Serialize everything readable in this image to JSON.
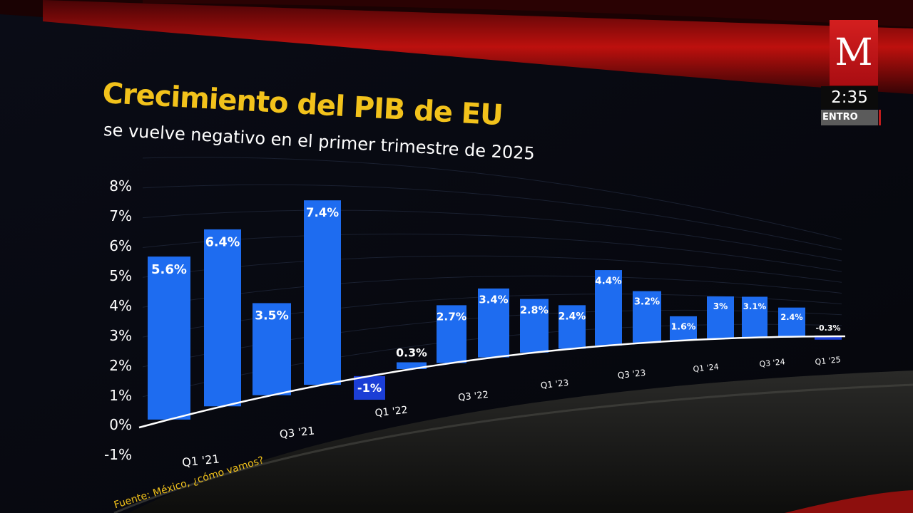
{
  "chart_data": {
    "type": "bar",
    "title": "Crecimiento del PIB de EU",
    "subtitle": "se vuelve negativo en el primer trimestre de 2025",
    "source": "Fuente: México, ¿cómo vamos?",
    "y_ticks": [
      "8%",
      "7%",
      "6%",
      "5%",
      "4%",
      "3%",
      "2%",
      "1%",
      "0%",
      "-1%"
    ],
    "ylim": [
      -1,
      8
    ],
    "x_tick_labels": [
      "Q1 '21",
      "Q3 '21",
      "Q1 '22",
      "Q3 '22",
      "Q1 '23",
      "Q3 '23",
      "Q1 '24",
      "Q3 '24",
      "Q1 '25"
    ],
    "values": [
      5.6,
      6.4,
      3.5,
      7.4,
      -1,
      0.3,
      2.7,
      3.4,
      2.8,
      2.4,
      4.4,
      3.2,
      1.6,
      3.0,
      3.1,
      2.4,
      -0.3
    ],
    "value_labels": [
      "5.6%",
      "6.4%",
      "3.5%",
      "7.4%",
      "-1%",
      "0.3%",
      "2.7%",
      "3.4%",
      "2.8%",
      "2.4%",
      "4.4%",
      "3.2%",
      "1.6%",
      "3%",
      "3.1%",
      "2.4%",
      "-0.3%"
    ],
    "bar_color": "#1e6cf0",
    "negative_bar_color": "#1b3ed6",
    "grid": true
  },
  "branding": {
    "logo_letter": "M",
    "clock": "2:35",
    "ticker": "ENTRO",
    "logo_color": "#d41f1f"
  }
}
